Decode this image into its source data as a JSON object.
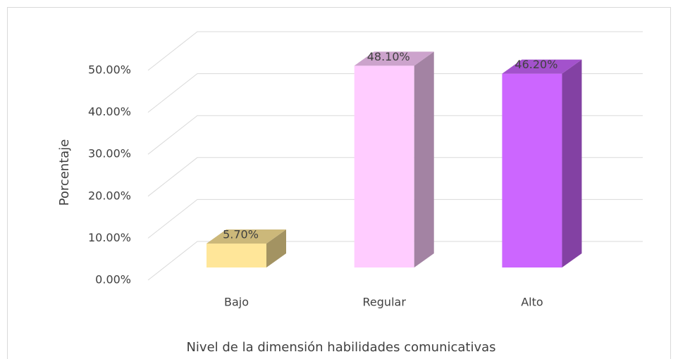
{
  "chart_data": {
    "type": "bar3d",
    "y_axis_label": "Porcentaje",
    "x_axis_label": "Nivel de la dimensión habilidades comunicativas",
    "categories": [
      "Bajo",
      "Regular",
      "Alto"
    ],
    "values": [
      5.7,
      48.1,
      46.2
    ],
    "value_labels": [
      "5.70%",
      "48.10%",
      "46.20%"
    ],
    "colors": [
      "#ffe699",
      "#ffccff",
      "#cc66ff"
    ],
    "ylim": [
      0,
      50
    ],
    "yticks": [
      {
        "value": 0,
        "label": "0.00%"
      },
      {
        "value": 10,
        "label": "10.00%"
      },
      {
        "value": 20,
        "label": "20.00%"
      },
      {
        "value": 30,
        "label": "30.00%"
      },
      {
        "value": 40,
        "label": "40.00%"
      },
      {
        "value": 50,
        "label": "50.00%"
      }
    ],
    "grid": true
  }
}
